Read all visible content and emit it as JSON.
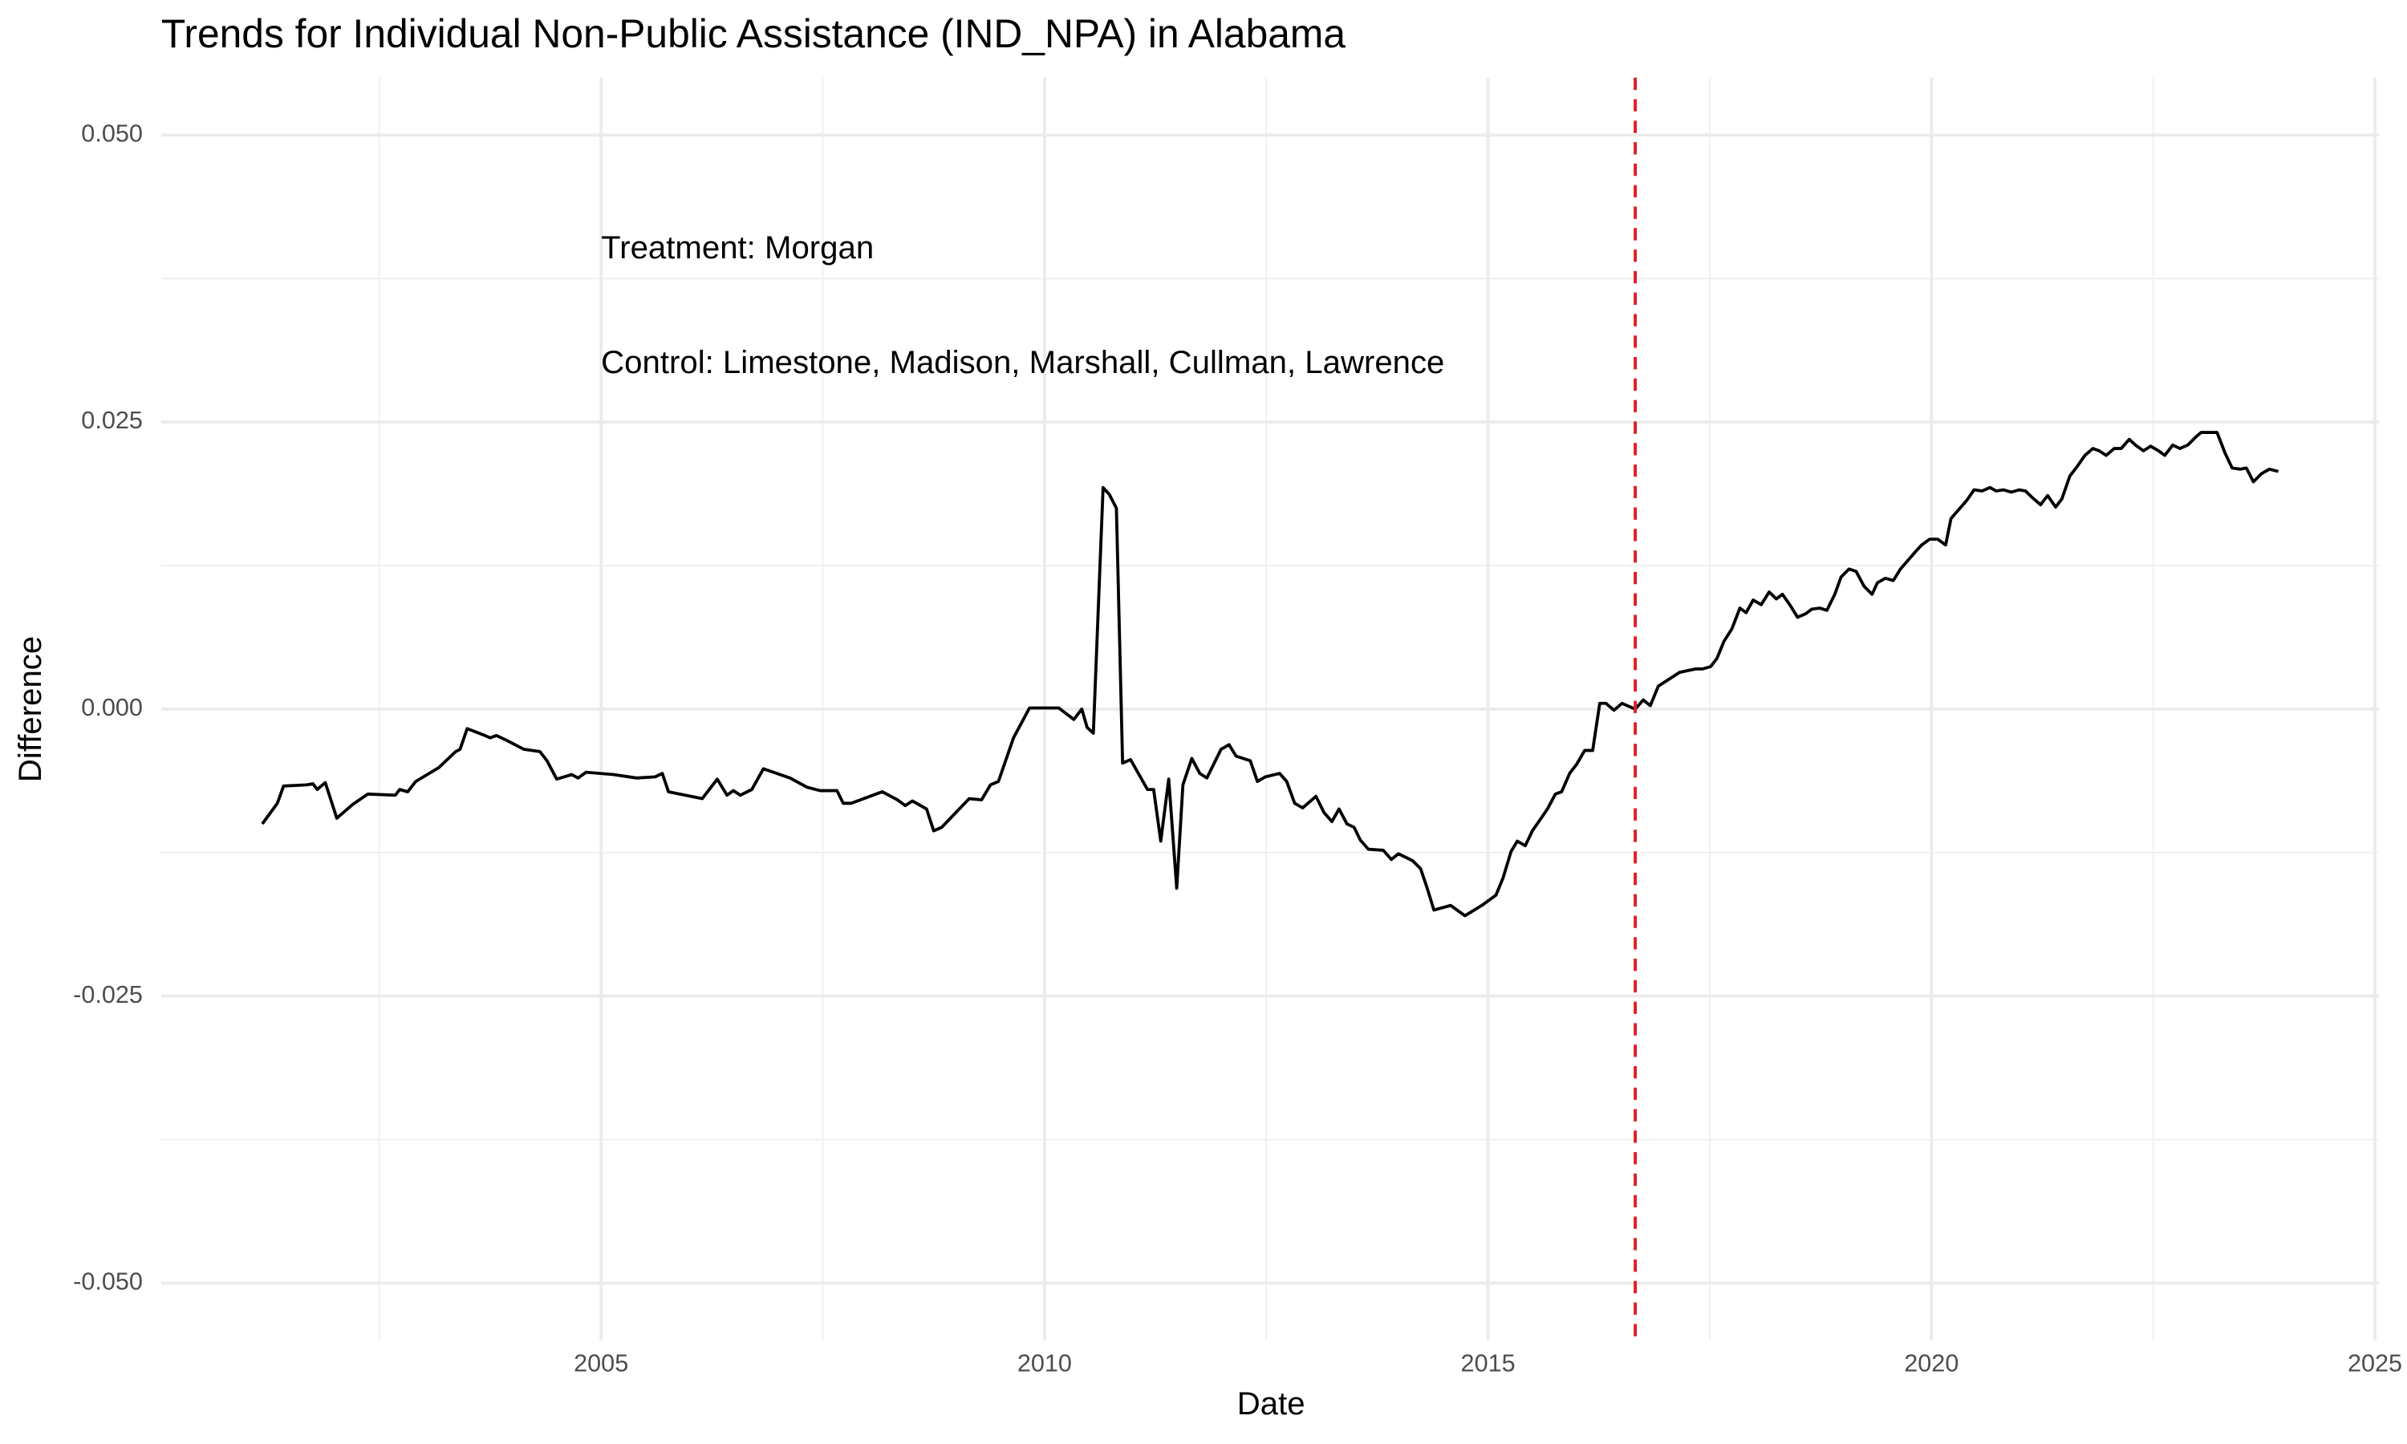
{
  "chart_data": {
    "type": "line",
    "title": "Trends for Individual Non-Public Assistance (IND_NPA) in Alabama",
    "xlabel": "Date",
    "ylabel": "Difference",
    "xlim": [
      2000.04,
      2025.05
    ],
    "ylim": [
      -0.055,
      0.055
    ],
    "xticks": [
      2005,
      2010,
      2015,
      2020,
      2025
    ],
    "yticks": [
      {
        "value": -0.05,
        "label": "-0.050"
      },
      {
        "value": -0.025,
        "label": "-0.025"
      },
      {
        "value": 0,
        "label": "0.000"
      },
      {
        "value": 0.025,
        "label": "0.025"
      },
      {
        "value": 0.05,
        "label": "0.050"
      }
    ],
    "x_minor_ticks": [
      2002.5,
      2007.5,
      2012.5,
      2017.5,
      2022.5
    ],
    "y_minor_ticks": [
      -0.0375,
      -0.0125,
      0.0125,
      0.0375
    ],
    "grid": true,
    "vline": {
      "x": 2016.66,
      "color": "#e41a1c"
    },
    "annotations": [
      {
        "text": "Treatment: Morgan",
        "x": 2005,
        "y": 0.04
      },
      {
        "text": "Control: Limestone, Madison, Marshall, Cullman, Lawrence",
        "x": 2005,
        "y": 0.03
      }
    ],
    "series": [
      {
        "name": "IND_NPA",
        "color": "#000000",
        "x": [
          2001.18,
          2001.35,
          2001.42,
          2001.68,
          2001.75,
          2001.8,
          2001.89,
          2002.02,
          2002.2,
          2002.37,
          2002.68,
          2002.73,
          2002.82,
          2002.91,
          2003.17,
          2003.36,
          2003.41,
          2003.49,
          2003.69,
          2003.75,
          2003.82,
          2003.93,
          2004.13,
          2004.31,
          2004.39,
          2004.5,
          2004.67,
          2004.74,
          2004.83,
          2005.14,
          2005.4,
          2005.61,
          2005.69,
          2005.76,
          2006.14,
          2006.31,
          2006.42,
          2006.49,
          2006.57,
          2006.7,
          2006.83,
          2007.13,
          2007.32,
          2007.47,
          2007.66,
          2007.73,
          2007.82,
          2008.17,
          2008.34,
          2008.43,
          2008.51,
          2008.67,
          2008.75,
          2008.84,
          2009.15,
          2009.29,
          2009.39,
          2009.48,
          2009.65,
          2009.83,
          2010.16,
          2010.33,
          2010.42,
          2010.48,
          2010.55,
          2010.66,
          2010.73,
          2010.81,
          2010.88,
          2010.97,
          2011.16,
          2011.23,
          2011.31,
          2011.4,
          2011.49,
          2011.56,
          2011.66,
          2011.75,
          2011.83,
          2011.99,
          2012.08,
          2012.16,
          2012.32,
          2012.4,
          2012.49,
          2012.65,
          2012.73,
          2012.82,
          2012.91,
          2013.06,
          2013.15,
          2013.24,
          2013.32,
          2013.41,
          2013.49,
          2013.56,
          2013.65,
          2013.82,
          2013.91,
          2013.99,
          2014.15,
          2014.24,
          2014.31,
          2014.39,
          2014.58,
          2014.74,
          2014.93,
          2015.09,
          2015.17,
          2015.26,
          2015.33,
          2015.42,
          2015.5,
          2015.59,
          2015.67,
          2015.76,
          2015.83,
          2015.92,
          2016.0,
          2016.09,
          2016.18,
          2016.26,
          2016.33,
          2016.42,
          2016.51,
          2016.66,
          2016.75,
          2016.83,
          2016.92,
          2017.08,
          2017.16,
          2017.34,
          2017.42,
          2017.51,
          2017.58,
          2017.66,
          2017.75,
          2017.84,
          2017.91,
          2017.99,
          2018.08,
          2018.17,
          2018.25,
          2018.32,
          2018.41,
          2018.49,
          2018.58,
          2018.65,
          2018.74,
          2018.82,
          2018.91,
          2018.98,
          2019.07,
          2019.15,
          2019.24,
          2019.33,
          2019.39,
          2019.48,
          2019.57,
          2019.65,
          2019.74,
          2019.83,
          2019.89,
          2019.98,
          2020.07,
          2020.16,
          2020.22,
          2020.31,
          2020.4,
          2020.48,
          2020.57,
          2020.66,
          2020.73,
          2020.81,
          2020.9,
          2020.99,
          2021.06,
          2021.14,
          2021.23,
          2021.31,
          2021.4,
          2021.47,
          2021.56,
          2021.64,
          2021.73,
          2021.82,
          2021.89,
          2021.97,
          2022.06,
          2022.14,
          2022.23,
          2022.3,
          2022.39,
          2022.47,
          2022.56,
          2022.63,
          2022.72,
          2022.8,
          2022.89,
          2022.98,
          2023.04,
          2023.13,
          2023.22,
          2023.31,
          2023.39,
          2023.48,
          2023.55,
          2023.63,
          2023.72,
          2023.81,
          2023.91
        ],
        "values": [
          -0.01,
          -0.0082,
          -0.0067,
          -0.0066,
          -0.0065,
          -0.007,
          -0.0064,
          -0.0095,
          -0.0083,
          -0.0074,
          -0.0075,
          -0.007,
          -0.0072,
          -0.0063,
          -0.0051,
          -0.0037,
          -0.0035,
          -0.0017,
          -0.0023,
          -0.0025,
          -0.0023,
          -0.0027,
          -0.0035,
          -0.0037,
          -0.0045,
          -0.0061,
          -0.0057,
          -0.006,
          -0.0055,
          -0.0057,
          -0.006,
          -0.0059,
          -0.0056,
          -0.0072,
          -0.0078,
          -0.0061,
          -0.0075,
          -0.0071,
          -0.0075,
          -0.007,
          -0.0052,
          -0.006,
          -0.0068,
          -0.0071,
          -0.0071,
          -0.0082,
          -0.0082,
          -0.0072,
          -0.0079,
          -0.0084,
          -0.008,
          -0.0087,
          -0.0106,
          -0.0103,
          -0.0078,
          -0.0079,
          -0.0066,
          -0.0063,
          -0.0025,
          0.0001,
          0.0001,
          -0.0009,
          0.0,
          -0.0016,
          -0.0021,
          0.0193,
          0.0187,
          0.0175,
          -0.0047,
          -0.0044,
          -0.007,
          -0.007,
          -0.0115,
          -0.0061,
          -0.0156,
          -0.0066,
          -0.0043,
          -0.0056,
          -0.006,
          -0.0035,
          -0.0031,
          -0.0041,
          -0.0045,
          -0.0063,
          -0.0059,
          -0.0056,
          -0.0063,
          -0.0082,
          -0.0086,
          -0.0076,
          -0.009,
          -0.0098,
          -0.0087,
          -0.01,
          -0.0103,
          -0.0114,
          -0.0122,
          -0.0123,
          -0.0131,
          -0.0126,
          -0.0132,
          -0.0139,
          -0.0155,
          -0.0175,
          -0.0171,
          -0.018,
          -0.0171,
          -0.0162,
          -0.0147,
          -0.0124,
          -0.0115,
          -0.0119,
          -0.0106,
          -0.0096,
          -0.0087,
          -0.0074,
          -0.0072,
          -0.0056,
          -0.0048,
          -0.0036,
          -0.0036,
          0.0005,
          0.0005,
          -0.0001,
          0.0005,
          0.0,
          0.0008,
          0.0003,
          0.002,
          0.0028,
          0.0032,
          0.0035,
          0.0035,
          0.0037,
          0.0044,
          0.0059,
          0.007,
          0.0088,
          0.0084,
          0.0095,
          0.0091,
          0.0102,
          0.0096,
          0.01,
          0.009,
          0.008,
          0.0083,
          0.0087,
          0.0088,
          0.0086,
          0.01,
          0.0115,
          0.0122,
          0.012,
          0.0107,
          0.01,
          0.011,
          0.0114,
          0.0112,
          0.0122,
          0.013,
          0.0138,
          0.0143,
          0.0148,
          0.0148,
          0.0143,
          0.0166,
          0.0174,
          0.0182,
          0.0191,
          0.019,
          0.0193,
          0.019,
          0.0191,
          0.0189,
          0.0191,
          0.019,
          0.0184,
          0.0178,
          0.0186,
          0.0176,
          0.0183,
          0.0203,
          0.0211,
          0.0221,
          0.0227,
          0.0225,
          0.0221,
          0.0227,
          0.0227,
          0.0235,
          0.023,
          0.0225,
          0.0229,
          0.0225,
          0.0221,
          0.023,
          0.0227,
          0.023,
          0.0237,
          0.0241,
          0.0241,
          0.0241,
          0.0223,
          0.021,
          0.0209,
          0.021,
          0.0198,
          0.0205,
          0.0209,
          0.0207
        ]
      }
    ]
  }
}
